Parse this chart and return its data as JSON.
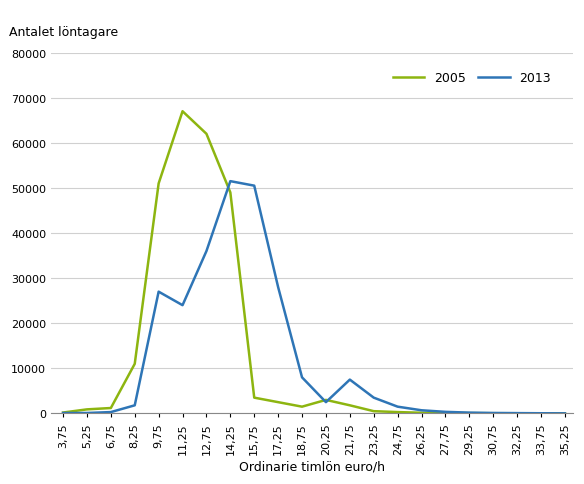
{
  "x_labels": [
    "3,75",
    "5,25",
    "6,75",
    "8,25",
    "9,75",
    "11,25",
    "12,75",
    "14,25",
    "15,75",
    "17,25",
    "18,75",
    "20,25",
    "21,75",
    "23,25",
    "24,75",
    "26,25",
    "27,75",
    "29,25",
    "30,75",
    "32,25",
    "33,75",
    "35,25"
  ],
  "x_values": [
    3.75,
    5.25,
    6.75,
    8.25,
    9.75,
    11.25,
    12.75,
    14.25,
    15.75,
    17.25,
    18.75,
    20.25,
    21.75,
    23.25,
    24.75,
    26.25,
    27.75,
    29.25,
    30.75,
    32.25,
    33.75,
    35.25
  ],
  "y_2005": [
    200,
    900,
    1200,
    11000,
    51000,
    67000,
    62000,
    49000,
    3500,
    2500,
    1500,
    3000,
    1800,
    500,
    300,
    150,
    100,
    70,
    50,
    40,
    30,
    20
  ],
  "y_2013": [
    100,
    100,
    300,
    1800,
    27000,
    24000,
    36000,
    51500,
    50500,
    28000,
    8000,
    2500,
    7500,
    3500,
    1500,
    700,
    350,
    180,
    100,
    70,
    40,
    20
  ],
  "color_2005": "#8db510",
  "color_2013": "#2e75b6",
  "ylabel": "Antalet löntagare",
  "xlabel": "Ordinarie timlön euro/h",
  "ylim": [
    0,
    80000
  ],
  "yticks": [
    0,
    10000,
    20000,
    30000,
    40000,
    50000,
    60000,
    70000,
    80000
  ],
  "ytick_labels": [
    "0",
    "10000",
    "20000",
    "30000",
    "40000",
    "50000",
    "60000",
    "70000",
    "80000"
  ],
  "legend_2005": "2005",
  "legend_2013": "2013",
  "bg_color": "#ffffff",
  "grid_color": "#d0d0d0",
  "line_width": 1.8
}
